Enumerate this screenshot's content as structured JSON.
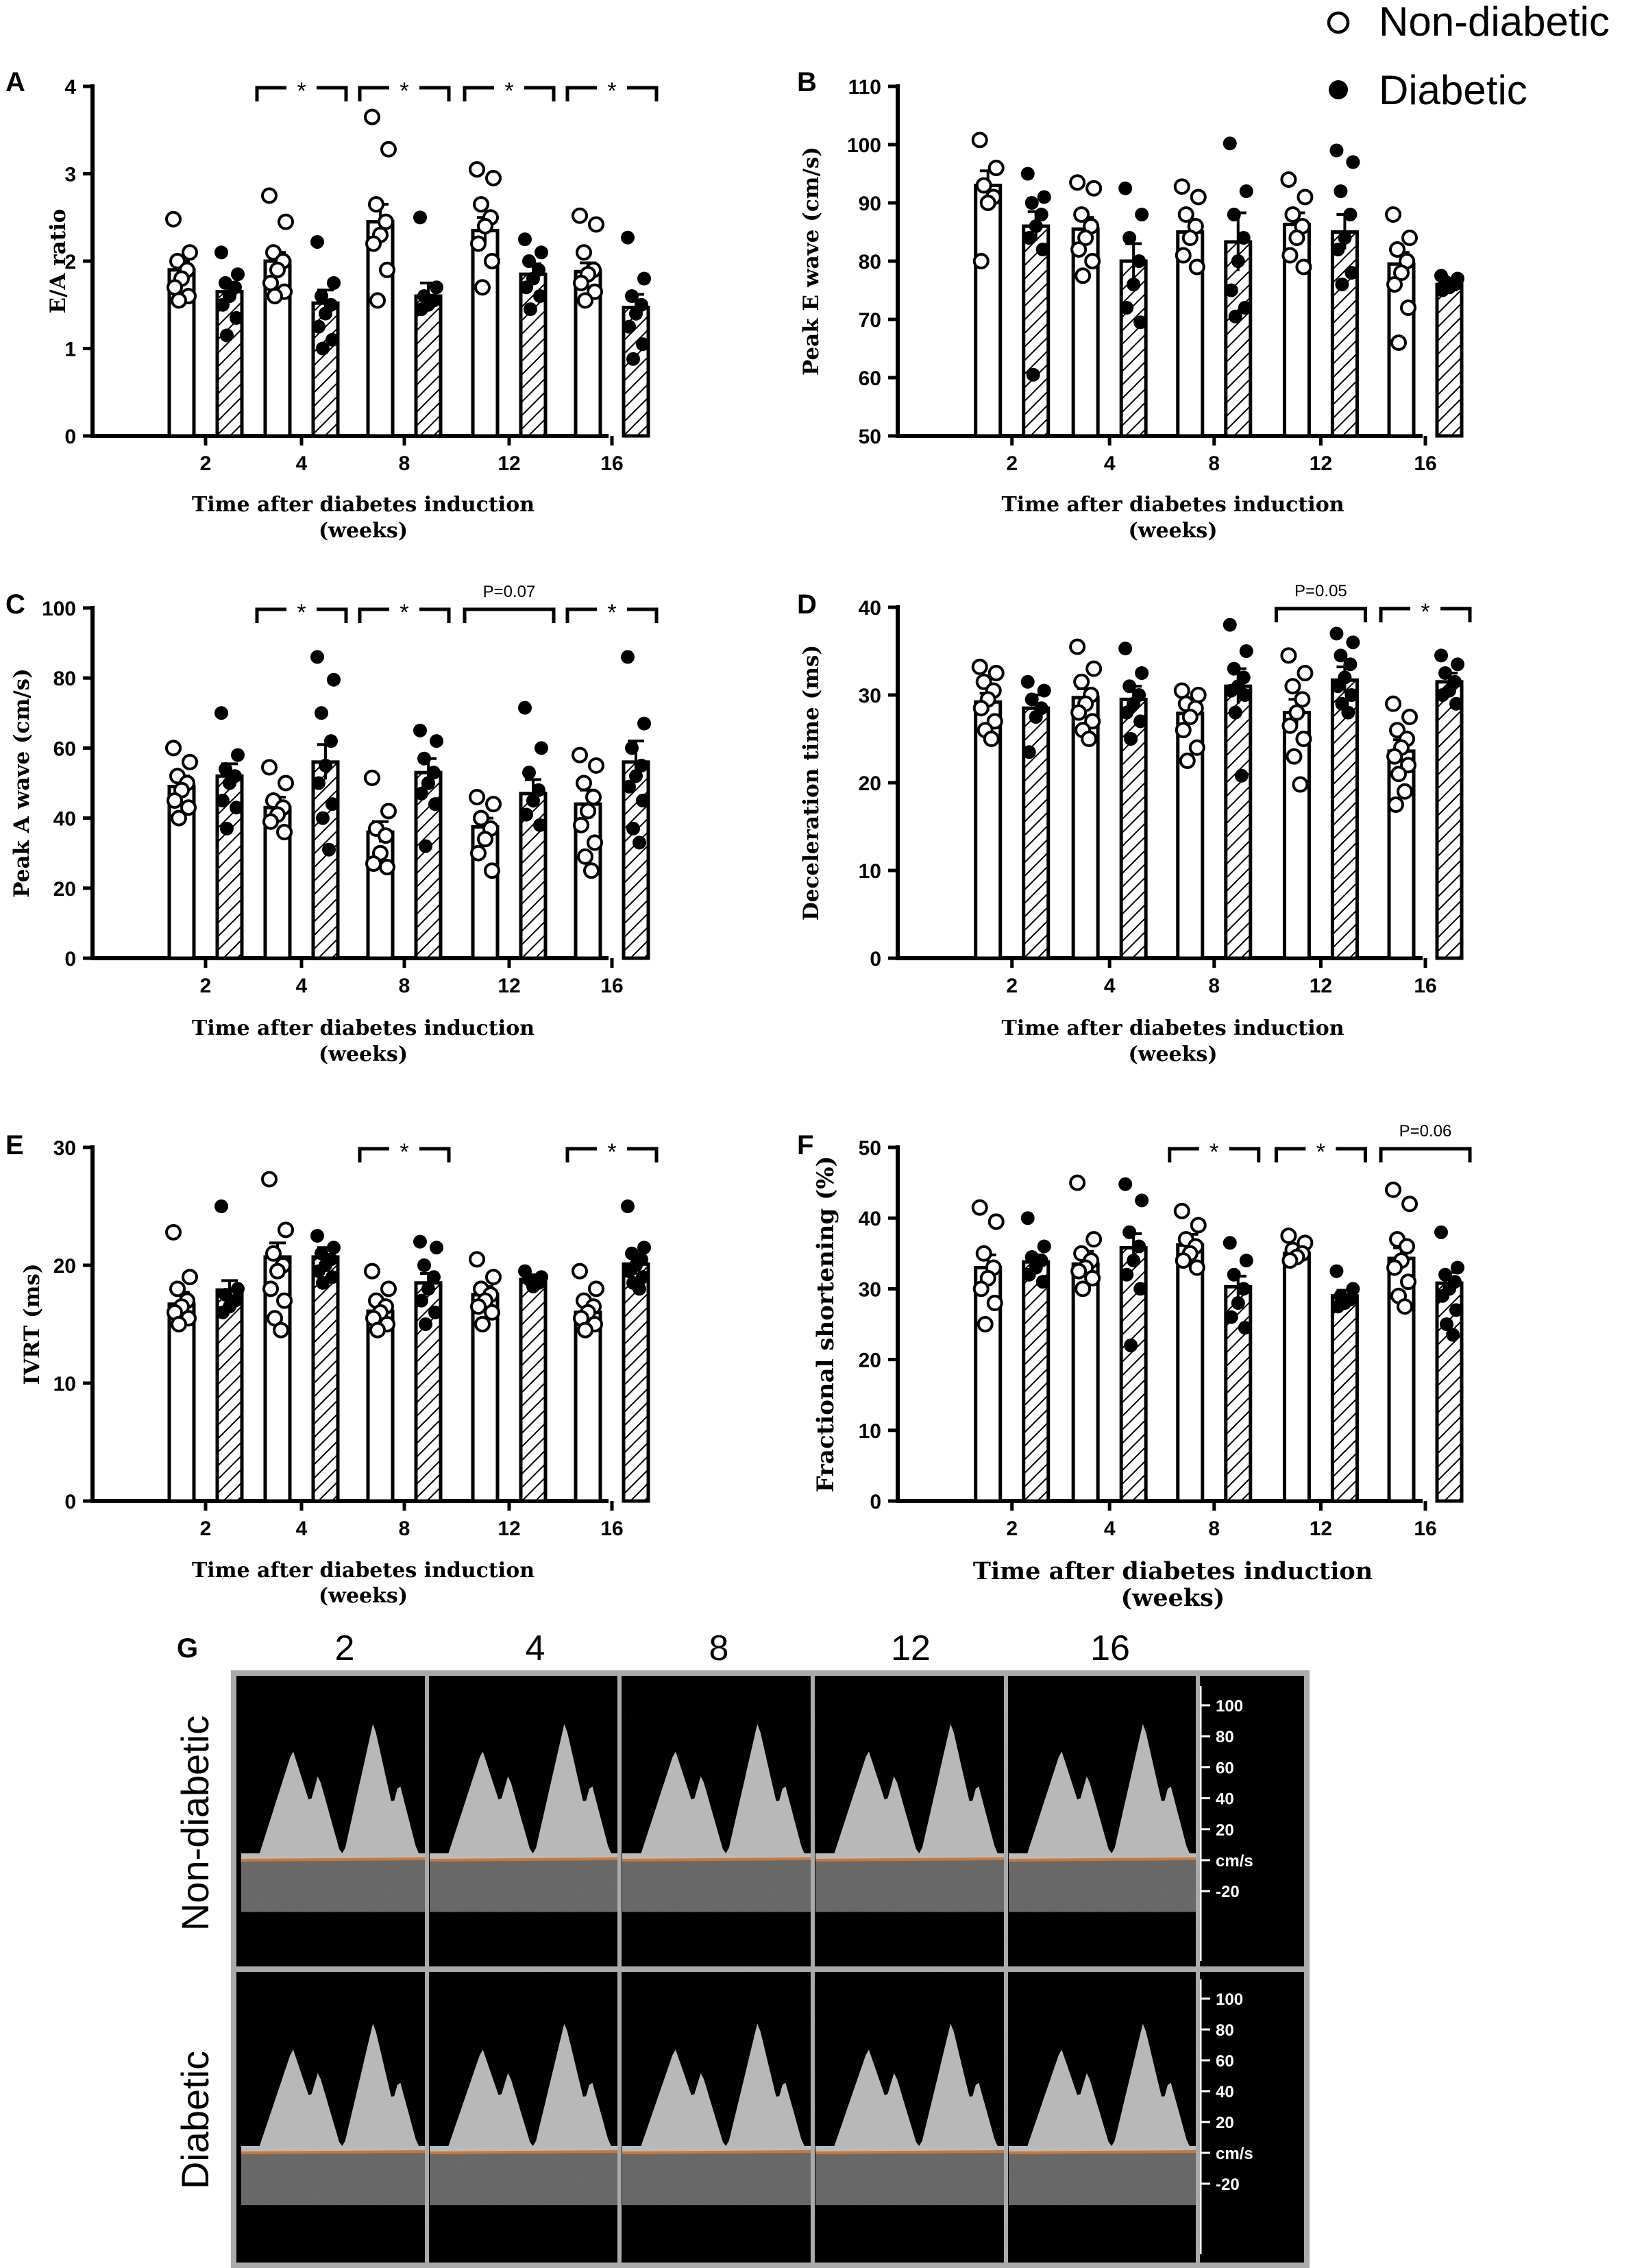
{
  "legend": {
    "non_diabetic": "Non-diabetic",
    "diabetic": "Diabetic"
  },
  "colors": {
    "axis": "#000000",
    "bar_fill_non_diabetic": "#ffffff",
    "bar_hatch_diabetic": "#000000",
    "doppler_background": "#000000",
    "doppler_frame": "#aaaaaa",
    "doppler_baseline": "#c8783c"
  },
  "chart_data": [
    {
      "panel": "A",
      "type": "bar",
      "categories": [
        "2",
        "4",
        "8",
        "12",
        "16"
      ],
      "ylabel": "E/A ratio",
      "xlabel": "Time after diabetes induction",
      "xlabel2": "(weeks)",
      "ylim": [
        0,
        4
      ],
      "yticks": [
        0,
        1,
        2,
        3,
        4
      ],
      "yticklabels": [
        "0",
        "1",
        "2",
        "3",
        "4"
      ],
      "series": [
        {
          "name": "Non-diabetic",
          "values": [
            1.9,
            2.0,
            2.45,
            2.35,
            1.88
          ],
          "errors": [
            0.1,
            0.1,
            0.2,
            0.15,
            0.1
          ],
          "points": [
            [
              2.48,
              2.1,
              2.0,
              1.9,
              1.8,
              1.7,
              1.6,
              1.55
            ],
            [
              2.75,
              2.45,
              2.1,
              2.0,
              1.9,
              1.75,
              1.65,
              1.6
            ],
            [
              3.65,
              3.28,
              2.65,
              2.45,
              2.3,
              2.2,
              1.9,
              1.55
            ],
            [
              3.05,
              2.95,
              2.65,
              2.5,
              2.4,
              2.2,
              2.0,
              1.7
            ],
            [
              2.52,
              2.42,
              2.1,
              1.9,
              1.85,
              1.75,
              1.65,
              1.55
            ]
          ]
        },
        {
          "name": "Diabetic",
          "values": [
            1.65,
            1.52,
            1.6,
            1.85,
            1.47
          ],
          "errors": [
            0.1,
            0.15,
            0.15,
            0.12,
            0.15
          ],
          "points": [
            [
              2.1,
              1.85,
              1.75,
              1.7,
              1.6,
              1.5,
              1.35,
              1.15
            ],
            [
              2.22,
              1.75,
              1.6,
              1.5,
              1.4,
              1.25,
              1.1,
              1.0
            ],
            [
              2.5,
              1.7,
              1.6,
              1.55,
              1.5,
              1.45
            ],
            [
              2.25,
              2.1,
              2.0,
              1.9,
              1.8,
              1.7,
              1.6,
              1.45
            ],
            [
              2.27,
              1.8,
              1.6,
              1.5,
              1.4,
              1.25,
              1.05,
              0.88
            ]
          ]
        }
      ],
      "annotations": [
        {
          "category_index": 1,
          "text": "*"
        },
        {
          "category_index": 2,
          "text": "*"
        },
        {
          "category_index": 3,
          "text": "*"
        },
        {
          "category_index": 4,
          "text": "*"
        }
      ]
    },
    {
      "panel": "B",
      "type": "bar",
      "categories": [
        "2",
        "4",
        "8",
        "12",
        "16"
      ],
      "ylabel": "Peak E wave (cm/s)",
      "xlabel": "Time after diabetes induction",
      "xlabel2": "(weeks)",
      "ylim": [
        50,
        110
      ],
      "yticks": [
        50,
        60,
        70,
        80,
        90,
        100,
        110
      ],
      "yticklabels": [
        "50",
        "60",
        "70",
        "80",
        "90",
        "100",
        "110"
      ],
      "series": [
        {
          "name": "Non-diabetic",
          "values": [
            93,
            85.5,
            85,
            86.3,
            79.5
          ],
          "errors": [
            2.5,
            2.0,
            2.0,
            2.0,
            2.0
          ],
          "points": [
            [
              100.8,
              96,
              93,
              91,
              90,
              80
            ],
            [
              93.5,
              92.5,
              88,
              86,
              84,
              82,
              80,
              77.5
            ],
            [
              92.8,
              91,
              88,
              86,
              84,
              81,
              79
            ],
            [
              94,
              91,
              88,
              86,
              84,
              81,
              79
            ],
            [
              88,
              84,
              82,
              80,
              78,
              76,
              72,
              66
            ]
          ]
        },
        {
          "name": "Diabetic",
          "values": [
            86,
            80,
            83.3,
            85,
            76
          ],
          "errors": [
            2.5,
            3.0,
            5.0,
            3.0,
            1.0
          ],
          "points": [
            [
              95,
              91,
              90,
              88,
              86,
              84,
              82,
              60.5
            ],
            [
              92.5,
              88,
              84,
              80,
              76,
              72,
              69.5
            ],
            [
              100.2,
              92,
              88,
              84,
              80,
              75,
              72,
              70.5
            ],
            [
              99,
              97,
              92,
              88,
              84,
              82,
              78,
              76
            ],
            [
              77.5,
              77,
              76.5,
              76,
              75.5,
              75
            ]
          ]
        }
      ],
      "annotations": []
    },
    {
      "panel": "C",
      "type": "bar",
      "categories": [
        "2",
        "4",
        "8",
        "12",
        "16"
      ],
      "ylabel": "Peak A wave (cm/s)",
      "xlabel": "Time after diabetes induction",
      "xlabel2": "(weeks)",
      "ylim": [
        0,
        100
      ],
      "yticks": [
        0,
        20,
        40,
        60,
        80,
        100
      ],
      "yticklabels": [
        "0",
        "20",
        "40",
        "60",
        "80",
        "100"
      ],
      "series": [
        {
          "name": "Non-diabetic",
          "values": [
            49,
            43,
            36,
            37.5,
            44
          ],
          "errors": [
            3,
            3,
            3,
            2.5,
            4
          ],
          "points": [
            [
              60,
              56,
              52,
              50,
              48,
              45,
              43,
              40
            ],
            [
              54.5,
              50,
              45,
              43,
              41,
              39,
              36
            ],
            [
              51.5,
              42,
              37,
              35,
              30,
              27,
              26
            ],
            [
              46,
              44,
              40,
              37,
              34,
              30,
              25
            ],
            [
              58,
              55,
              50,
              46,
              42,
              38,
              33,
              29,
              25
            ]
          ]
        },
        {
          "name": "Diabetic",
          "values": [
            52,
            56,
            53,
            47,
            56
          ],
          "errors": [
            3.5,
            5,
            4,
            4,
            6
          ],
          "points": [
            [
              70,
              58,
              54,
              52,
              50,
              45,
              43,
              37
            ],
            [
              86,
              79.5,
              70,
              62,
              55,
              50,
              44,
              40,
              31
            ],
            [
              65,
              62,
              57,
              53,
              50,
              47,
              44,
              32
            ],
            [
              71.5,
              60,
              53,
              48,
              45,
              41,
              38
            ],
            [
              86,
              67,
              60,
              55,
              52,
              49,
              45,
              37,
              33
            ]
          ]
        }
      ],
      "annotations": [
        {
          "category_index": 1,
          "text": "*"
        },
        {
          "category_index": 2,
          "text": "*"
        },
        {
          "category_index": 3,
          "text": "P=0.07"
        },
        {
          "category_index": 4,
          "text": "*"
        }
      ]
    },
    {
      "panel": "D",
      "type": "bar",
      "categories": [
        "2",
        "4",
        "8",
        "12",
        "16"
      ],
      "ylabel": "Deceleration time (ms)",
      "xlabel": "Time after diabetes induction",
      "xlabel2": "(weeks)",
      "ylim": [
        0,
        40
      ],
      "yticks": [
        0,
        10,
        20,
        30,
        40
      ],
      "yticklabels": [
        "0",
        "10",
        "20",
        "30",
        "40"
      ],
      "series": [
        {
          "name": "Non-diabetic",
          "values": [
            29.2,
            29.7,
            27.9,
            28,
            23.6
          ],
          "errors": [
            1.0,
            1.0,
            1.0,
            1.5,
            1.3
          ],
          "points": [
            [
              33.2,
              32.5,
              31.5,
              30.5,
              29.5,
              28.5,
              27,
              26,
              25
            ],
            [
              35.5,
              33,
              31.5,
              30,
              29,
              28,
              27,
              26,
              25
            ],
            [
              30.5,
              30,
              29,
              28.5,
              27.5,
              26,
              24,
              22.5
            ],
            [
              34.5,
              32.5,
              31,
              29.5,
              28,
              26.5,
              25,
              23,
              19.8
            ],
            [
              29,
              27.5,
              26,
              25,
              24,
              23,
              22,
              21,
              19,
              17.5
            ]
          ]
        },
        {
          "name": "Diabetic",
          "values": [
            28.5,
            29.5,
            31,
            31.7,
            31.5
          ],
          "errors": [
            1.5,
            1.5,
            2.0,
            1.5,
            1.0
          ],
          "points": [
            [
              31.5,
              30.5,
              29.5,
              28.5,
              27.5,
              23.5
            ],
            [
              35.3,
              32.5,
              31,
              30,
              29,
              28,
              27,
              25
            ],
            [
              38,
              35,
              33,
              32,
              31,
              30.5,
              30,
              28,
              20.8
            ],
            [
              37,
              36,
              34.5,
              33.5,
              32,
              31,
              30,
              29,
              28
            ],
            [
              34.5,
              33.5,
              32.5,
              31.5,
              30.5,
              30,
              29
            ]
          ]
        }
      ],
      "annotations": [
        {
          "category_index": 3,
          "text": "P=0.05"
        },
        {
          "category_index": 4,
          "text": "*"
        }
      ]
    },
    {
      "panel": "E",
      "type": "bar",
      "categories": [
        "2",
        "4",
        "8",
        "12",
        "16"
      ],
      "ylabel": "IVRT (ms)",
      "xlabel": "Time after diabetes induction",
      "xlabel2": "(weeks)",
      "ylim": [
        0,
        30
      ],
      "yticks": [
        0,
        10,
        20,
        30
      ],
      "yticklabels": [
        "0",
        "10",
        "20",
        "30"
      ],
      "series": [
        {
          "name": "Non-diabetic",
          "values": [
            16.7,
            20.7,
            16.1,
            17.5,
            16
          ],
          "errors": [
            1.0,
            1.2,
            0.8,
            0.7,
            0.6
          ],
          "points": [
            [
              22.8,
              19,
              18,
              17,
              16.5,
              16,
              15.5,
              15
            ],
            [
              27.3,
              23,
              21,
              20,
              19.5,
              18,
              17,
              15.5,
              14.5
            ],
            [
              19.5,
              18,
              17,
              16.5,
              16,
              15.5,
              15,
              14.5
            ],
            [
              20.5,
              19,
              18,
              17.5,
              17,
              16.5,
              16,
              15
            ],
            [
              19.5,
              18,
              17,
              16.5,
              16,
              15.5,
              15,
              14.5
            ]
          ]
        },
        {
          "name": "Diabetic",
          "values": [
            17.9,
            20.7,
            18.5,
            18.8,
            20.1
          ],
          "errors": [
            0.8,
            0.8,
            0.8,
            0.4,
            0.9
          ],
          "points": [
            [
              25,
              18,
              17.5,
              17,
              16.5,
              16
            ],
            [
              22.5,
              21.5,
              21,
              20.5,
              20,
              19.5,
              19,
              18.5
            ],
            [
              22,
              21.5,
              20,
              19,
              18,
              17,
              16,
              15
            ],
            [
              19.5,
              19,
              18.8,
              18.5,
              18.2
            ],
            [
              25,
              21.5,
              21,
              20.5,
              20,
              19.5,
              19,
              18.5,
              18
            ]
          ]
        }
      ],
      "annotations": [
        {
          "category_index": 2,
          "text": "*"
        },
        {
          "category_index": 4,
          "text": "*"
        }
      ]
    },
    {
      "panel": "F",
      "type": "bar",
      "categories": [
        "2",
        "4",
        "8",
        "12",
        "16"
      ],
      "ylabel": "Fractional shortening (%)",
      "xlabel": "Time after diabetes induction",
      "xlabel2": "(weeks)",
      "ylim": [
        0,
        50
      ],
      "yticks": [
        0,
        10,
        20,
        30,
        40,
        50
      ],
      "yticklabels": [
        "0",
        "10",
        "20",
        "30",
        "40",
        "50"
      ],
      "series": [
        {
          "name": "Non-diabetic",
          "values": [
            33,
            33.5,
            36.2,
            35,
            34.3
          ],
          "errors": [
            1.8,
            1.8,
            1.5,
            0.8,
            1.5
          ],
          "points": [
            [
              41.5,
              39.5,
              35,
              33,
              31.5,
              30,
              28,
              25
            ],
            [
              45,
              37,
              35,
              34,
              33,
              32.5,
              31.5,
              30
            ],
            [
              41,
              39,
              37,
              36,
              35,
              34,
              33
            ],
            [
              37.5,
              36.5,
              35.5,
              35,
              34.5,
              34
            ],
            [
              44,
              42,
              37,
              36,
              34,
              33,
              31,
              29,
              27.5
            ]
          ]
        },
        {
          "name": "Diabetic",
          "values": [
            33.8,
            35.8,
            30.3,
            29,
            30.8
          ],
          "errors": [
            1.0,
            2.0,
            1.5,
            0.8,
            1.5
          ],
          "points": [
            [
              40,
              36,
              34.5,
              34,
              33,
              32,
              31
            ],
            [
              44.8,
              42.5,
              38,
              36,
              34,
              32,
              30,
              22
            ],
            [
              36.5,
              34,
              32,
              30,
              28,
              26,
              24.5
            ],
            [
              32.5,
              30,
              29,
              28.5,
              28,
              27.5
            ],
            [
              38,
              33,
              32,
              31,
              30,
              29,
              27,
              25,
              23.5
            ]
          ]
        }
      ],
      "annotations": [
        {
          "category_index": 2,
          "text": "*"
        },
        {
          "category_index": 3,
          "text": "*"
        },
        {
          "category_index": 4,
          "text": "P=0.06"
        }
      ]
    }
  ],
  "doppler": {
    "panel": "G",
    "columns": [
      "2",
      "4",
      "8",
      "12",
      "16"
    ],
    "rows": [
      "Non-diabetic",
      "Diabetic"
    ],
    "scale_labels": [
      "100",
      "80",
      "60",
      "40",
      "20",
      "cm/s",
      "-20"
    ]
  }
}
